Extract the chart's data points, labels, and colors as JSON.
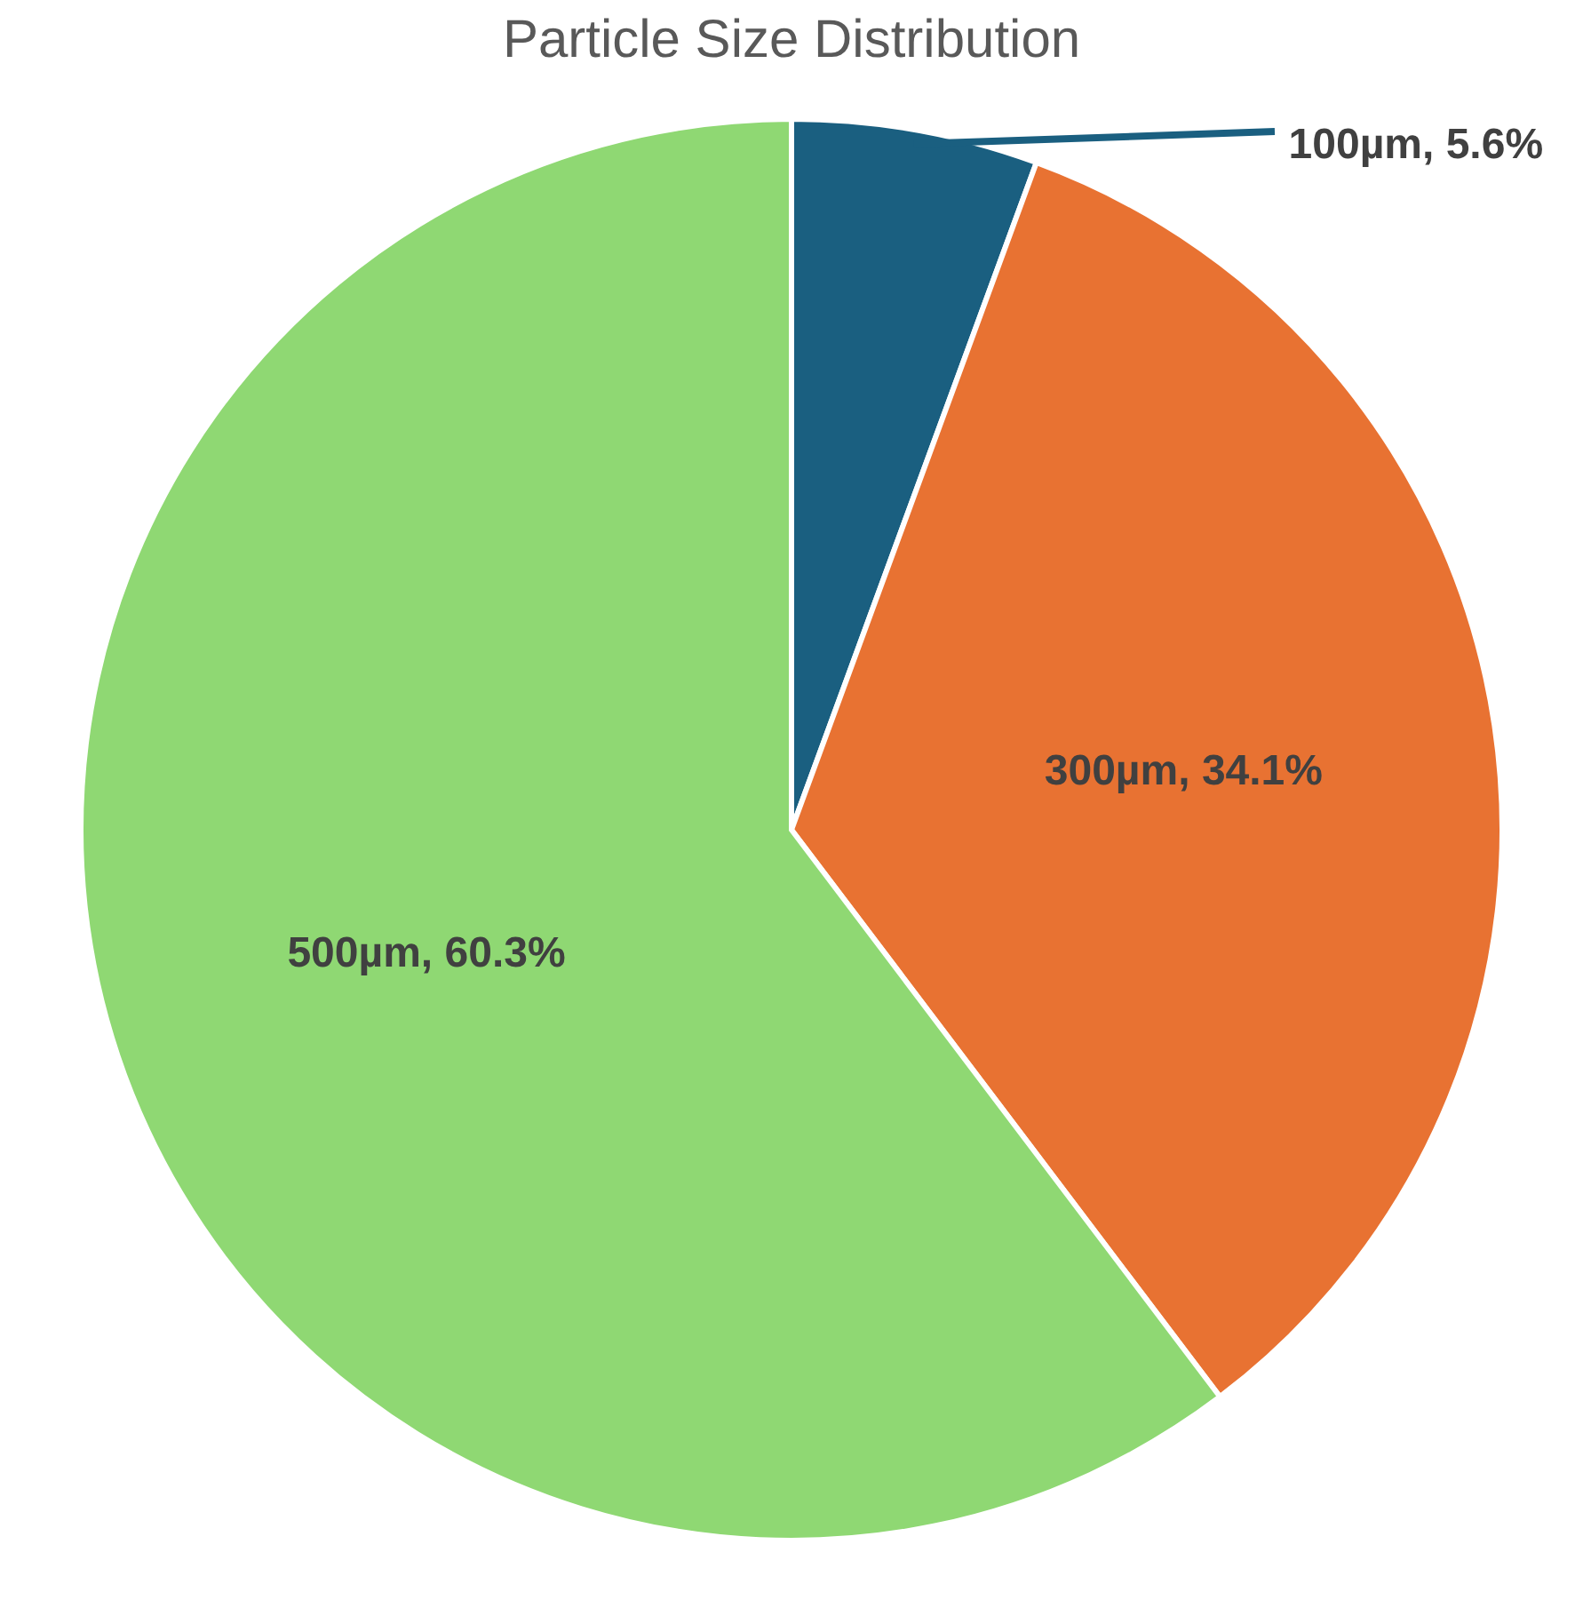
{
  "chart_data": {
    "type": "pie",
    "title": "Particle Size Distribution",
    "categories": [
      "100µm",
      "300µm",
      "500µm"
    ],
    "values": [
      5.6,
      34.1,
      60.3
    ],
    "colors": [
      "#1a5f80",
      "#e87232",
      "#8fd873"
    ],
    "value_labels": [
      ", 5.6%",
      ", 34.1%",
      ", 60.3%"
    ],
    "legend": false
  }
}
